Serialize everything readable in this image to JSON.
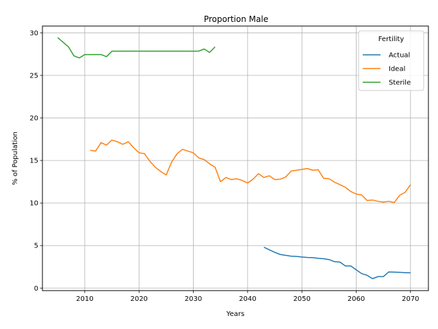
{
  "chart_data": {
    "type": "line",
    "title": "Proportion Male",
    "xlabel": "Years",
    "ylabel": "% of Population",
    "xlim": [
      2002.2,
      2073.3
    ],
    "ylim": [
      -0.3,
      30.8
    ],
    "xticks": [
      2010,
      2020,
      2030,
      2040,
      2050,
      2060,
      2070
    ],
    "yticks": [
      0,
      5,
      10,
      15,
      20,
      25,
      30
    ],
    "grid": true,
    "legend": {
      "title": "Fertility",
      "position": "top-right"
    },
    "series": [
      {
        "name": "Actual",
        "color": "#1f77b4",
        "x": [
          2043,
          2044,
          2045,
          2046,
          2047,
          2048,
          2049,
          2050,
          2051,
          2052,
          2053,
          2054,
          2055,
          2056,
          2057,
          2058,
          2059,
          2060,
          2061,
          2062,
          2063,
          2064,
          2065,
          2066,
          2067,
          2068,
          2069,
          2070
        ],
        "y": [
          4.8,
          4.5,
          4.2,
          3.95,
          3.85,
          3.75,
          3.72,
          3.65,
          3.6,
          3.58,
          3.5,
          3.45,
          3.35,
          3.1,
          3.05,
          2.6,
          2.6,
          2.15,
          1.7,
          1.5,
          1.1,
          1.35,
          1.35,
          1.9,
          1.88,
          1.85,
          1.82,
          1.8
        ]
      },
      {
        "name": "Ideal",
        "color": "#ff7f0e",
        "x": [
          2011,
          2012,
          2013,
          2014,
          2015,
          2016,
          2017,
          2018,
          2019,
          2020,
          2021,
          2022,
          2023,
          2024,
          2025,
          2026,
          2027,
          2028,
          2029,
          2030,
          2031,
          2032,
          2033,
          2034,
          2035,
          2036,
          2037,
          2038,
          2039,
          2040,
          2041,
          2042,
          2043,
          2044,
          2045,
          2046,
          2047,
          2048,
          2049,
          2050,
          2051,
          2052,
          2053,
          2054,
          2055,
          2056,
          2057,
          2058,
          2059,
          2060,
          2061,
          2062,
          2063,
          2064,
          2065,
          2066,
          2067,
          2068,
          2069,
          2070
        ],
        "y": [
          16.2,
          16.1,
          17.1,
          16.8,
          17.4,
          17.2,
          16.9,
          17.2,
          16.5,
          15.9,
          15.8,
          14.9,
          14.2,
          13.7,
          13.3,
          14.8,
          15.8,
          16.3,
          16.1,
          15.9,
          15.3,
          15.1,
          14.6,
          14.2,
          12.5,
          13.0,
          12.75,
          12.85,
          12.65,
          12.35,
          12.8,
          13.45,
          13.0,
          13.2,
          12.75,
          12.8,
          13.05,
          13.75,
          13.85,
          13.95,
          14.05,
          13.85,
          13.9,
          12.9,
          12.85,
          12.45,
          12.15,
          11.85,
          11.35,
          11.05,
          10.95,
          10.3,
          10.35,
          10.2,
          10.1,
          10.2,
          10.05,
          10.9,
          11.25,
          12.15
        ]
      },
      {
        "name": "Sterile",
        "color": "#2ca02c",
        "x": [
          2005,
          2006,
          2007,
          2008,
          2009,
          2010,
          2011,
          2012,
          2013,
          2014,
          2015,
          2016,
          2017,
          2018,
          2019,
          2020,
          2021,
          2022,
          2023,
          2024,
          2025,
          2026,
          2027,
          2028,
          2029,
          2030,
          2031,
          2032,
          2033,
          2034
        ],
        "y": [
          29.45,
          28.9,
          28.35,
          27.3,
          27.05,
          27.45,
          27.45,
          27.45,
          27.45,
          27.2,
          27.85,
          27.85,
          27.85,
          27.85,
          27.85,
          27.85,
          27.85,
          27.85,
          27.85,
          27.85,
          27.85,
          27.85,
          27.85,
          27.85,
          27.85,
          27.85,
          27.85,
          28.1,
          27.7,
          28.35
        ]
      }
    ]
  }
}
